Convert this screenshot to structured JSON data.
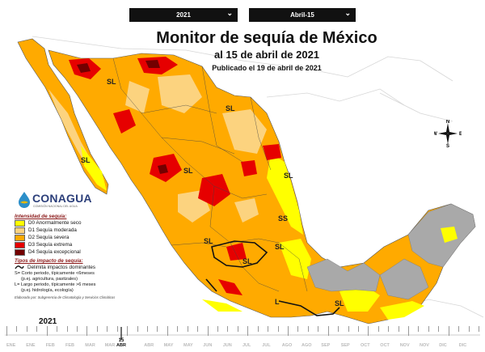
{
  "selectors": {
    "year": "2021",
    "date": "Abril-15"
  },
  "title": {
    "main": "Monitor de sequía de México",
    "date_line": "al 15 de abril de 2021",
    "published": "Publicado el 19 de abril de 2021"
  },
  "map_labels": [
    "SL",
    "SL",
    "SL",
    "SL",
    "SL",
    "SS",
    "SL",
    "SL",
    "SL",
    "L",
    "SL"
  ],
  "compass": {
    "n": "N",
    "s": "S",
    "e": "E",
    "w": "W"
  },
  "logo": {
    "name": "CONAGUA",
    "subtitle": "COMISIÓN NACIONAL DEL AGUA"
  },
  "legend": {
    "intensity_heading": "Intensidad de sequía:",
    "categories": [
      {
        "label": "D0 Anormalmente seco",
        "color": "#ffff00"
      },
      {
        "label": "D1 Sequía moderada",
        "color": "#fcd37f"
      },
      {
        "label": "D2 Sequía severa",
        "color": "#ffaa00"
      },
      {
        "label": "D3 Sequía extrema",
        "color": "#e60000"
      },
      {
        "label": "D4 Sequía excepcional",
        "color": "#730000"
      }
    ],
    "impact_heading": "Tipos de impacto de sequía:",
    "dominant": "Delimita impactos dominantes",
    "short_term": "S= Corto periodo, típicamente <6meses",
    "short_term_example": "(p.ej. agricultura, pastizales)",
    "long_term": "L= Largo periodo, típicamente >6 meses",
    "long_term_example": "(p.ej. hidrología, ecología)",
    "credit": "Elaborado por: Subgerencia de Climatología y Servicios Climáticos"
  },
  "timeline": {
    "year": "2021",
    "current_day": "15",
    "current_month": "ABR",
    "months": [
      "ENE",
      "FEB",
      "MAR",
      "ABR",
      "MAY",
      "JUN",
      "JUL",
      "AGO",
      "SEP",
      "OCT",
      "NOV",
      "DIC"
    ]
  },
  "colors": {
    "d0": "#ffff00",
    "d1": "#fcd37f",
    "d2": "#ffaa00",
    "d3": "#e60000",
    "d4": "#730000",
    "no_drought": "#a9a9a9",
    "dropdown_bg": "#111111"
  }
}
